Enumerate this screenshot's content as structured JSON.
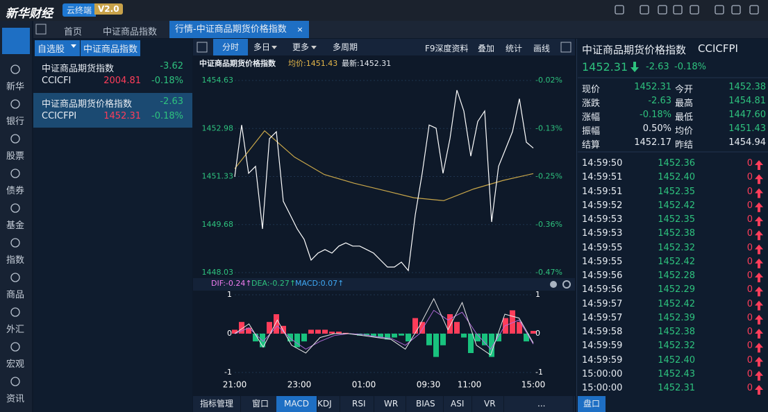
{
  "app": {
    "logo": "新华财经",
    "badge": "云终端",
    "version": "V2.0"
  },
  "tabs": [
    "首页",
    "中证商品指数",
    "行情-中证商品期货价格指数"
  ],
  "nav": [
    "新华",
    "银行",
    "股票",
    "债券",
    "基金",
    "指数",
    "商品",
    "外汇",
    "宏观",
    "资讯"
  ],
  "watchlist": {
    "dropdown": "自选股",
    "group": "中证商品指数",
    "items": [
      {
        "name": "中证商品期货指数",
        "change": "-3.62",
        "code": "CCICFI",
        "price": "2004.81",
        "pct": "-0.18%"
      },
      {
        "name": "中证商品期货价格指数",
        "change": "-2.63",
        "code": "CCICFPI",
        "price": "1452.31",
        "pct": "-0.18%"
      }
    ]
  },
  "toolbar": {
    "left": [
      "分时",
      "多日",
      "更多",
      "多周期"
    ],
    "right": [
      "F9深度资料",
      "叠加",
      "统计",
      "画线"
    ]
  },
  "chart": {
    "type": "line",
    "title": "中证商品期货价格指数",
    "avg_label": "均价:1451.43",
    "last_label": "最新:1452.31",
    "ylim": [
      1448.03,
      1454.63
    ],
    "yticks": [
      1454.63,
      1452.98,
      1451.33,
      1449.68,
      1448.03
    ],
    "pct_labels": [
      "-0.02%",
      "-0.13%",
      "-0.25%",
      "-0.36%",
      "-0.47%"
    ],
    "x_labels": [
      "21:00",
      "23:00",
      "01:00",
      "09:30",
      "11:00",
      "15:00"
    ],
    "price": [
      1451.32,
      1453.1,
      1451.44,
      1451.68,
      1449.53,
      1452.63,
      1452.87,
      1450.48,
      1450.01,
      1449.53,
      1449.17,
      1448.46,
      1448.7,
      1448.82,
      1448.7,
      1448.94,
      1449.05,
      1448.94,
      1448.94,
      1448.82,
      1448.7,
      1448.46,
      1448.22,
      1448.22,
      1448.39,
      1448.1,
      1450.01,
      1451.44,
      1453.1,
      1452.99,
      1451.44,
      1452.63,
      1454.3,
      1453.58,
      1452.03,
      1453.22,
      1453.58,
      1449.77,
      1451.68,
      1452.27,
      1452.87,
      1454.0,
      1452.51,
      1452.31
    ],
    "avg": [
      1451.6,
      1452.9,
      1452.0,
      1451.4,
      1451.1,
      1450.85,
      1450.6,
      1450.5,
      1450.9,
      1451.2,
      1451.43
    ]
  },
  "macd": {
    "dif_label": "DIF:-0.24↑",
    "dea_label": "DEA:-0.27↑",
    "macd_label": "MACD:0.07↑",
    "ylim": [
      -1,
      1
    ],
    "yticks": [
      1,
      0,
      -1
    ],
    "hist": [
      0.1,
      0.3,
      0.15,
      -0.2,
      -0.35,
      0.3,
      0.5,
      0.2,
      -0.2,
      -0.35,
      -0.2,
      0.1,
      0.1,
      0.1,
      0.05,
      0.05,
      0.02,
      -0.02,
      -0.05,
      -0.05,
      -0.08,
      -0.1,
      -0.15,
      -0.1,
      -0.05,
      -0.2,
      0.4,
      0.3,
      -0.3,
      -0.6,
      -0.3,
      0.5,
      0.3,
      -0.1,
      -0.5,
      -0.2,
      -0.3,
      -0.6,
      -0.2,
      0.4,
      0.6,
      0.3,
      -0.2,
      0.07
    ],
    "dif": [
      0.0,
      0.25,
      -0.35,
      0.35,
      -0.3,
      -0.5,
      -0.1,
      0.0,
      0.0,
      -0.05,
      -0.1,
      -0.15,
      -0.4,
      0.2,
      0.9,
      0.1,
      0.8,
      -0.3,
      -0.55,
      0.5,
      0.4,
      -0.24
    ],
    "dea": [
      0.0,
      0.15,
      -0.2,
      0.2,
      -0.15,
      -0.4,
      -0.2,
      -0.05,
      0.0,
      -0.02,
      -0.08,
      -0.12,
      -0.3,
      0.0,
      0.6,
      0.35,
      0.55,
      0.0,
      -0.4,
      0.2,
      0.35,
      -0.27
    ]
  },
  "indicator_tabs": [
    "指标管理",
    "窗口",
    "MACD",
    "KDJ",
    "RSI",
    "WR",
    "BIAS",
    "ASI",
    "VR",
    "..."
  ],
  "quote": {
    "name": "中证商品期货价格指数",
    "code": "CCICFPI",
    "price": "1452.31",
    "change": "-2.63",
    "pct": "-0.18%",
    "rows": [
      [
        "现价",
        "1452.31",
        "今开",
        "1452.38"
      ],
      [
        "涨跌",
        "-2.63",
        "最高",
        "1454.81"
      ],
      [
        "涨幅",
        "-0.18%",
        "最低",
        "1447.60"
      ],
      [
        "振幅",
        "0.50%",
        "均价",
        "1451.43"
      ],
      [
        "结算",
        "1452.17",
        "昨结",
        "1454.94"
      ]
    ]
  },
  "ticks": [
    [
      "14:59:50",
      "1452.36",
      "0"
    ],
    [
      "14:59:51",
      "1452.40",
      "0"
    ],
    [
      "14:59:51",
      "1452.35",
      "0"
    ],
    [
      "14:59:52",
      "1452.42",
      "0"
    ],
    [
      "14:59:53",
      "1452.35",
      "0"
    ],
    [
      "14:59:53",
      "1452.38",
      "0"
    ],
    [
      "14:59:55",
      "1452.32",
      "0"
    ],
    [
      "14:59:55",
      "1452.42",
      "0"
    ],
    [
      "14:59:56",
      "1452.28",
      "0"
    ],
    [
      "14:59:56",
      "1452.29",
      "0"
    ],
    [
      "14:59:57",
      "1452.42",
      "0"
    ],
    [
      "14:59:57",
      "1452.39",
      "0"
    ],
    [
      "14:59:58",
      "1452.38",
      "0"
    ],
    [
      "14:59:59",
      "1452.32",
      "0"
    ],
    [
      "14:59:59",
      "1452.40",
      "0"
    ],
    [
      "15:00:00",
      "1452.43",
      "0"
    ],
    [
      "15:00:00",
      "1452.31",
      "0"
    ]
  ],
  "bottom_tab": "盘口"
}
